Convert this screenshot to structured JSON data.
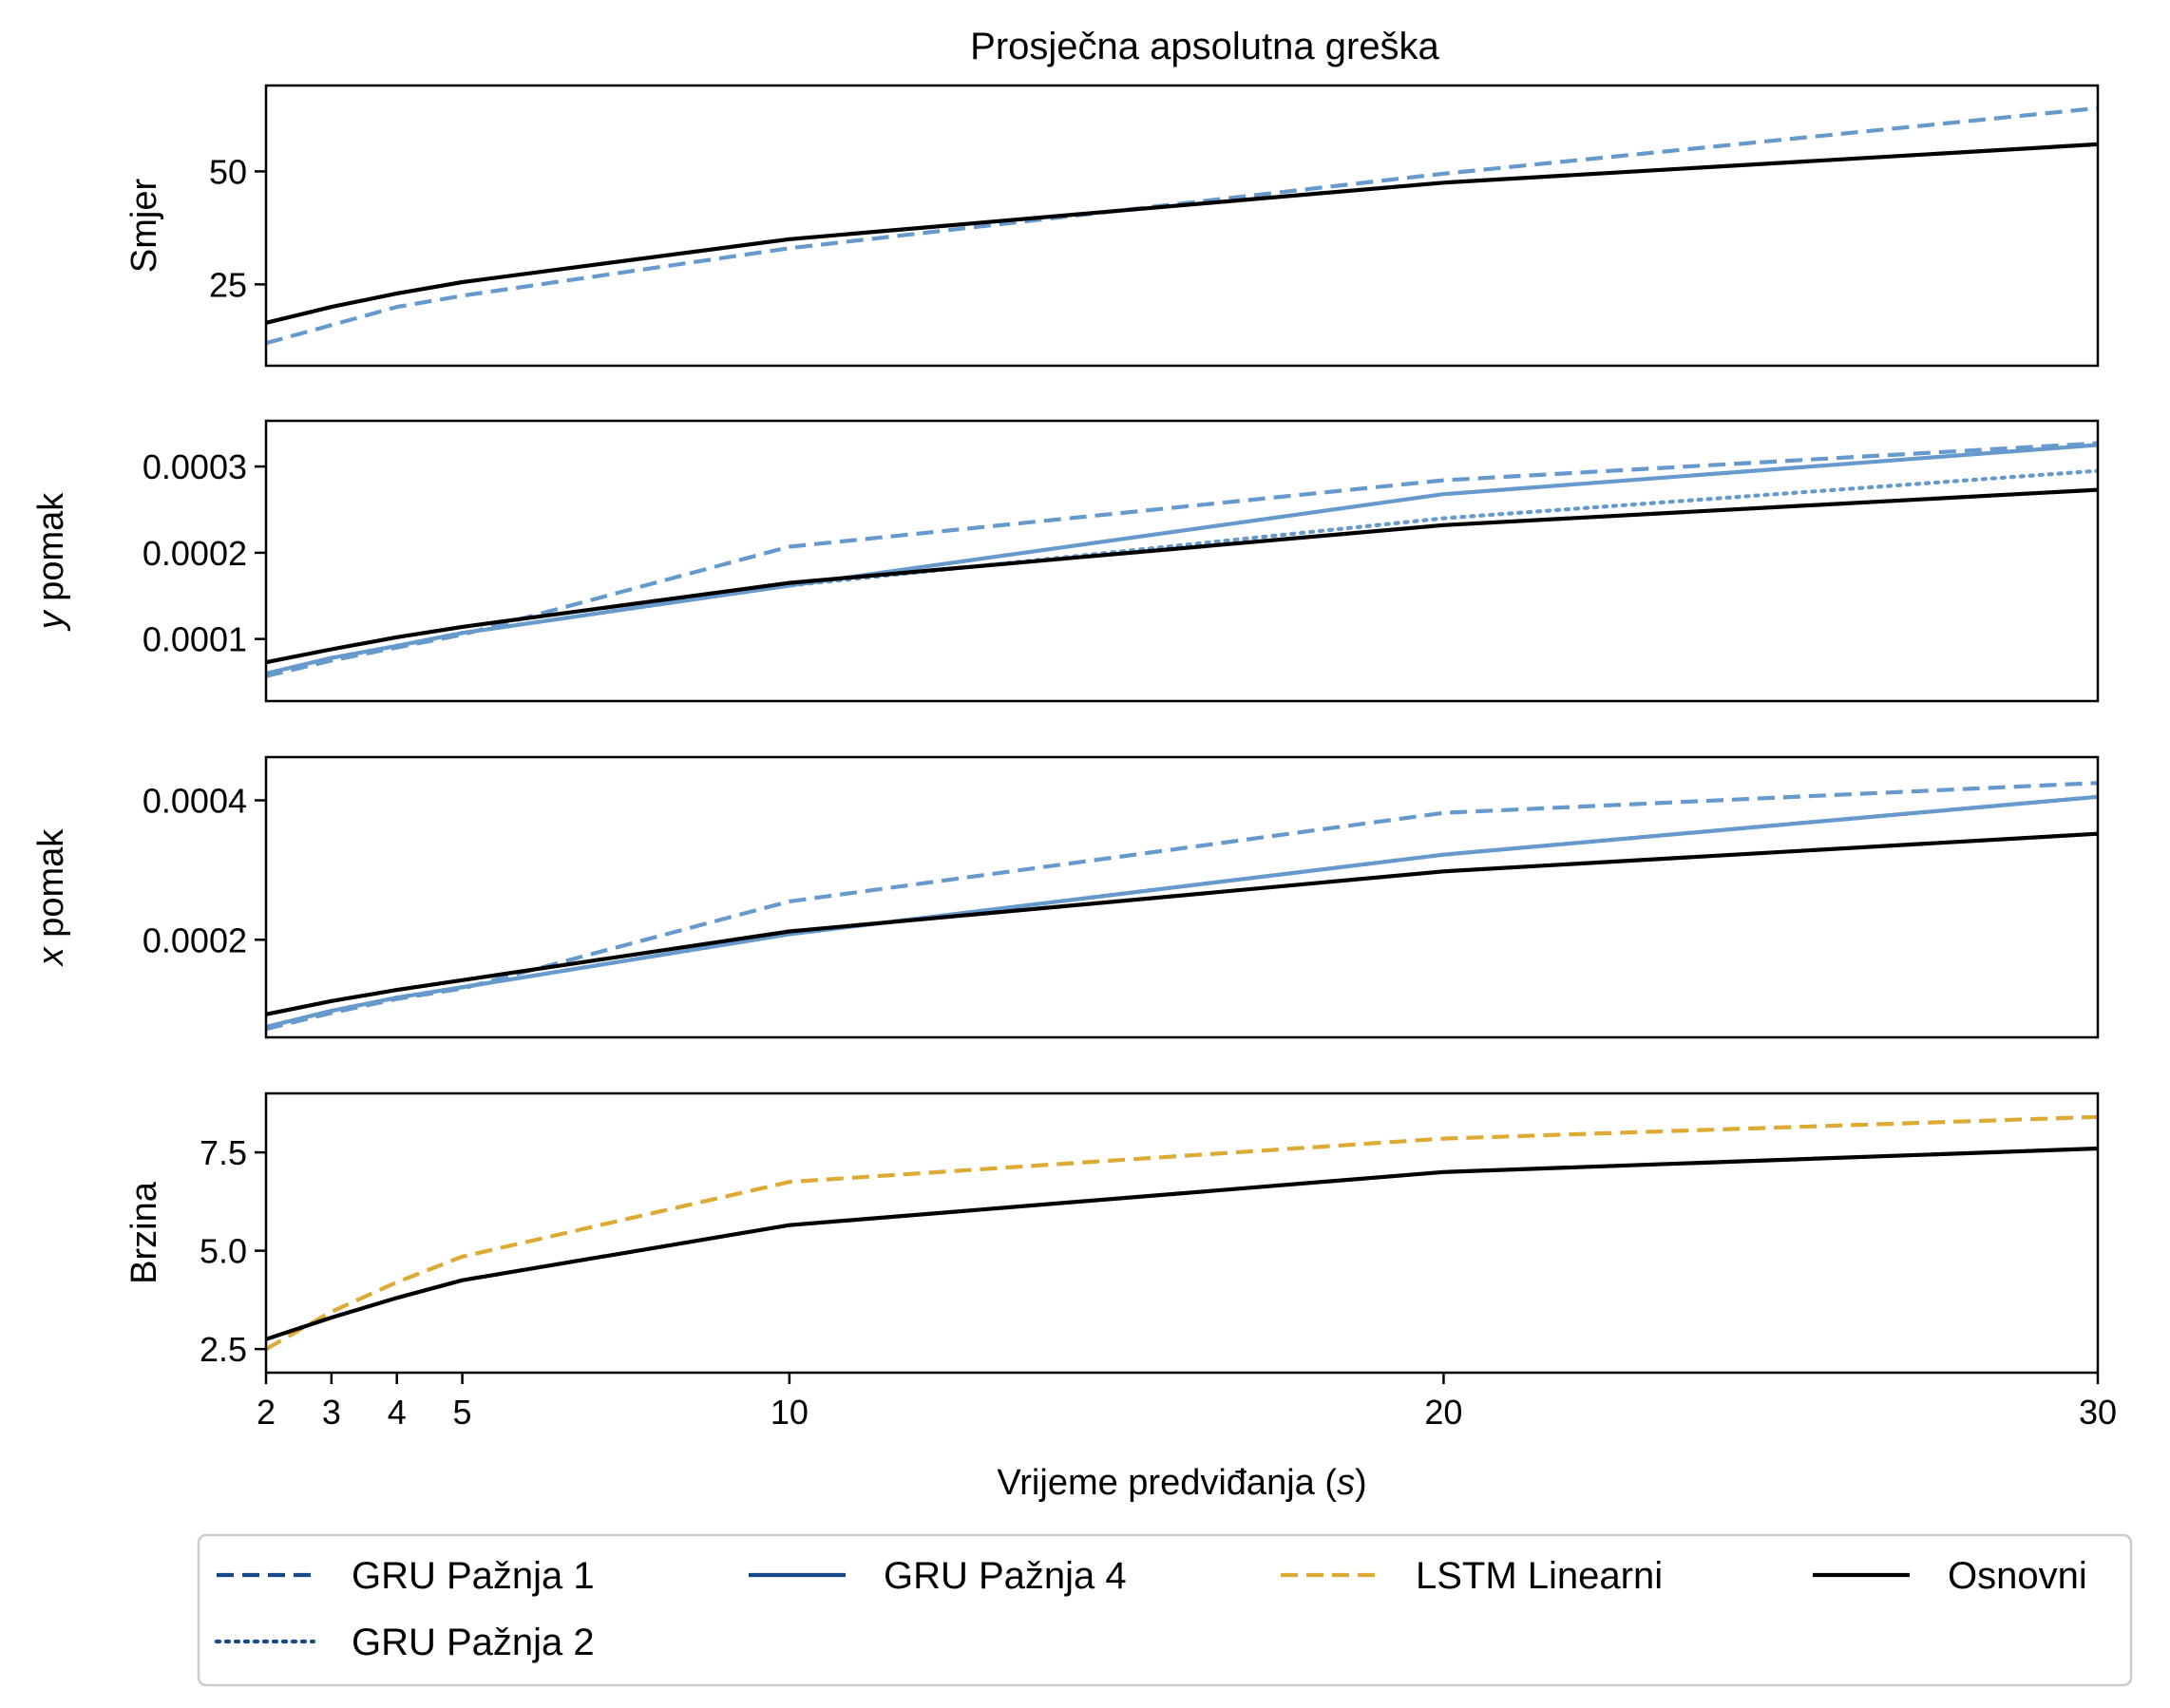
{
  "figure_title": "Prosječna apsolutna greška",
  "colors": {
    "gru": "#6699cc",
    "gru_legend": "#174a8b",
    "lstm": "#ddaa33",
    "baseline": "#000000"
  },
  "legend": {
    "placement": "bottom, below x-axis, 4 columns",
    "entries": [
      {
        "label": "GRU Pažnja 1",
        "style": "dashed",
        "color": "gru_legend"
      },
      {
        "label": "GRU Pažnja 2",
        "style": "dotted",
        "color": "gru_legend"
      },
      {
        "label": "GRU Pažnja 4",
        "style": "solid",
        "color": "gru_legend"
      },
      {
        "label": "LSTM Linearni",
        "style": "dashed",
        "color": "lstm"
      },
      {
        "label": "Osnovni",
        "style": "solid",
        "color": "baseline"
      }
    ]
  },
  "chart_data": [
    {
      "type": "line",
      "title": "Prosječna apsolutna greška",
      "ylabel": "Smjer",
      "xlim": [
        2,
        30
      ],
      "ylim": [
        7,
        69
      ],
      "yticks": [
        {
          "v": 25,
          "label": "25"
        },
        {
          "v": 50,
          "label": "50"
        }
      ],
      "grid": false,
      "series": [
        {
          "name": "GRU Pažnja 1",
          "style": "dashed",
          "color": "gru",
          "x": [
            2,
            3,
            4,
            5,
            10,
            20,
            30
          ],
          "y": [
            12,
            16,
            20,
            22.5,
            33,
            49.5,
            64
          ]
        },
        {
          "name": "Osnovni",
          "style": "solid",
          "color": "baseline",
          "x": [
            2,
            3,
            4,
            5,
            10,
            20,
            30
          ],
          "y": [
            16.5,
            20,
            23,
            25.5,
            35,
            47.5,
            56
          ]
        }
      ]
    },
    {
      "type": "line",
      "ylabel": "y pomak",
      "ylabel_italic": "y",
      "ylabel_rest": " pomak",
      "xlim": [
        2,
        30
      ],
      "ylim": [
        2.8e-05,
        0.000353
      ],
      "yticks": [
        {
          "v": 0.0001,
          "label": "0.0001"
        },
        {
          "v": 0.0002,
          "label": "0.0002"
        },
        {
          "v": 0.0003,
          "label": "0.0003"
        }
      ],
      "grid": false,
      "series": [
        {
          "name": "GRU Pažnja 1",
          "style": "dashed",
          "color": "gru",
          "x": [
            2,
            3,
            4,
            5,
            10,
            20,
            30
          ],
          "y": [
            5.7e-05,
            7.5e-05,
            9e-05,
            0.000105,
            0.000207,
            0.000284,
            0.000327
          ]
        },
        {
          "name": "GRU Pažnja 2",
          "style": "dotted",
          "color": "gru",
          "x": [
            2,
            3,
            4,
            5,
            10,
            20,
            30
          ],
          "y": [
            6e-05,
            7.8e-05,
            9.2e-05,
            0.000107,
            0.000162,
            0.00024,
            0.000295
          ]
        },
        {
          "name": "GRU Pažnja 4",
          "style": "solid",
          "color": "gru",
          "x": [
            2,
            3,
            4,
            5,
            10,
            20,
            30
          ],
          "y": [
            6e-05,
            7.8e-05,
            9.2e-05,
            0.000107,
            0.000162,
            0.000268,
            0.000325
          ]
        },
        {
          "name": "Osnovni",
          "style": "solid",
          "color": "baseline",
          "x": [
            2,
            3,
            4,
            5,
            10,
            20,
            30
          ],
          "y": [
            7.3e-05,
            8.8e-05,
            0.000102,
            0.000114,
            0.000165,
            0.000232,
            0.000273
          ]
        }
      ]
    },
    {
      "type": "line",
      "ylabel": "x pomak",
      "ylabel_italic": "x",
      "ylabel_rest": " pomak",
      "xlim": [
        2,
        30
      ],
      "ylim": [
        6e-05,
        0.000462
      ],
      "yticks": [
        {
          "v": 0.0002,
          "label": "0.0002"
        },
        {
          "v": 0.0004,
          "label": "0.0004"
        }
      ],
      "grid": false,
      "series": [
        {
          "name": "GRU Pažnja 1",
          "style": "dashed",
          "color": "gru",
          "x": [
            2,
            3,
            4,
            5,
            10,
            20,
            30
          ],
          "y": [
            7.2e-05,
            9.5e-05,
            0.000115,
            0.00013,
            0.000255,
            0.000382,
            0.000425
          ]
        },
        {
          "name": "GRU Pažnja 2",
          "style": "dotted",
          "color": "gru",
          "x": [
            2,
            3,
            4,
            5,
            10,
            20,
            30
          ],
          "y": [
            7.5e-05,
            9.8e-05,
            0.000117,
            0.000132,
            0.000208,
            0.000322,
            0.000405
          ]
        },
        {
          "name": "GRU Pažnja 4",
          "style": "solid",
          "color": "gru",
          "x": [
            2,
            3,
            4,
            5,
            10,
            20,
            30
          ],
          "y": [
            7.5e-05,
            9.8e-05,
            0.000117,
            0.000132,
            0.000208,
            0.000322,
            0.000405
          ]
        },
        {
          "name": "Osnovni",
          "style": "solid",
          "color": "baseline",
          "x": [
            2,
            3,
            4,
            5,
            10,
            20,
            30
          ],
          "y": [
            9.3e-05,
            0.000112,
            0.000128,
            0.000142,
            0.000212,
            0.000298,
            0.000352
          ]
        }
      ]
    },
    {
      "type": "line",
      "ylabel": "Brzina",
      "xlabel": "Vrijeme predviđanja (s)",
      "xlabel_main": "Vrijeme predviđanja (",
      "xlabel_italic": "s",
      "xlabel_end": ")",
      "xlim": [
        2,
        30
      ],
      "ylim": [
        1.9,
        9.0
      ],
      "xticks": [
        {
          "v": 2,
          "label": "2"
        },
        {
          "v": 3,
          "label": "3"
        },
        {
          "v": 4,
          "label": "4"
        },
        {
          "v": 5,
          "label": "5"
        },
        {
          "v": 10,
          "label": "10"
        },
        {
          "v": 20,
          "label": "20"
        },
        {
          "v": 30,
          "label": "30"
        }
      ],
      "yticks": [
        {
          "v": 2.5,
          "label": "2.5"
        },
        {
          "v": 5.0,
          "label": "5.0"
        },
        {
          "v": 7.5,
          "label": "7.5"
        }
      ],
      "grid": false,
      "series": [
        {
          "name": "LSTM Linearni",
          "style": "dashed",
          "color": "lstm",
          "x": [
            2,
            3,
            4,
            5,
            10,
            20,
            30
          ],
          "y": [
            2.5,
            3.45,
            4.2,
            4.85,
            6.75,
            7.85,
            8.4
          ]
        },
        {
          "name": "Osnovni",
          "style": "solid",
          "color": "baseline",
          "x": [
            2,
            3,
            4,
            5,
            10,
            20,
            30
          ],
          "y": [
            2.75,
            3.3,
            3.8,
            4.25,
            5.65,
            7.0,
            7.6
          ]
        }
      ]
    }
  ]
}
